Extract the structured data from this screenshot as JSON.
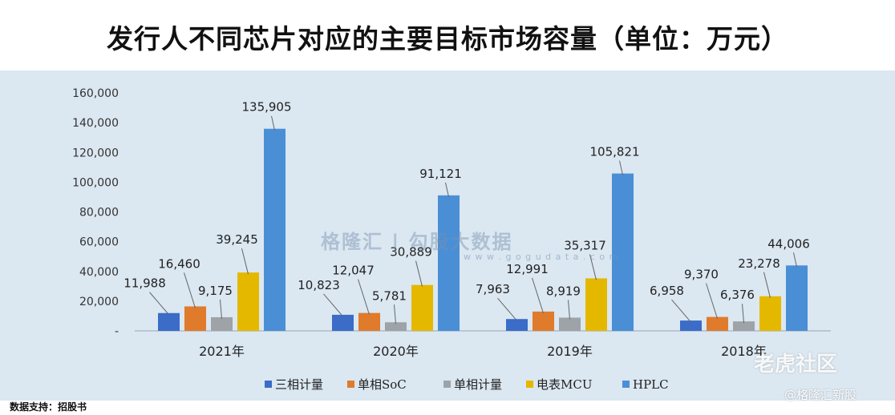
{
  "chart_data": {
    "type": "bar",
    "title": "发行人不同芯片对应的主要目标市场容量（单位：万元）",
    "categories": [
      "2021年",
      "2020年",
      "2019年",
      "2018年"
    ],
    "series": [
      {
        "name": "三相计量",
        "color": "#3a6cc8",
        "values": [
          11988,
          10823,
          7963,
          6958
        ],
        "labels": [
          "11,988",
          "10,823",
          "7,963",
          "6,958"
        ]
      },
      {
        "name": "单相SoC",
        "color": "#e07b2b",
        "values": [
          16460,
          12047,
          12991,
          9370
        ],
        "labels": [
          "16,460",
          "12,047",
          "12,991",
          "9,370"
        ]
      },
      {
        "name": "单相计量",
        "color": "#9ea3a8",
        "values": [
          9175,
          5781,
          8919,
          6376
        ],
        "labels": [
          "9,175",
          "5,781",
          "8,919",
          "6,376"
        ]
      },
      {
        "name": "电表MCU",
        "color": "#e5b800",
        "values": [
          39245,
          30889,
          35317,
          23278
        ],
        "labels": [
          "39,245",
          "30,889",
          "35,317",
          "23,278"
        ]
      },
      {
        "name": "HPLC",
        "color": "#4a8fd6",
        "values": [
          135905,
          91121,
          105821,
          44006
        ],
        "labels": [
          "135,905",
          "91,121",
          "105,821",
          "44,006"
        ]
      }
    ],
    "yticks": [
      "160,000",
      "140,000",
      "120,000",
      "100,000",
      "80,000",
      "60,000",
      "40,000",
      "20,000",
      "-"
    ],
    "ylim": [
      0,
      160000
    ],
    "legend_position": "bottom",
    "grid": false
  },
  "source_note": "数据支持：招股书",
  "watermark": {
    "brand": "格隆汇  |  勾股大数据",
    "url": "w w w . g o g u d a t a . c o m"
  },
  "corner_watermark": {
    "community": "老虎社区",
    "handle": "@格隆汇新股"
  }
}
